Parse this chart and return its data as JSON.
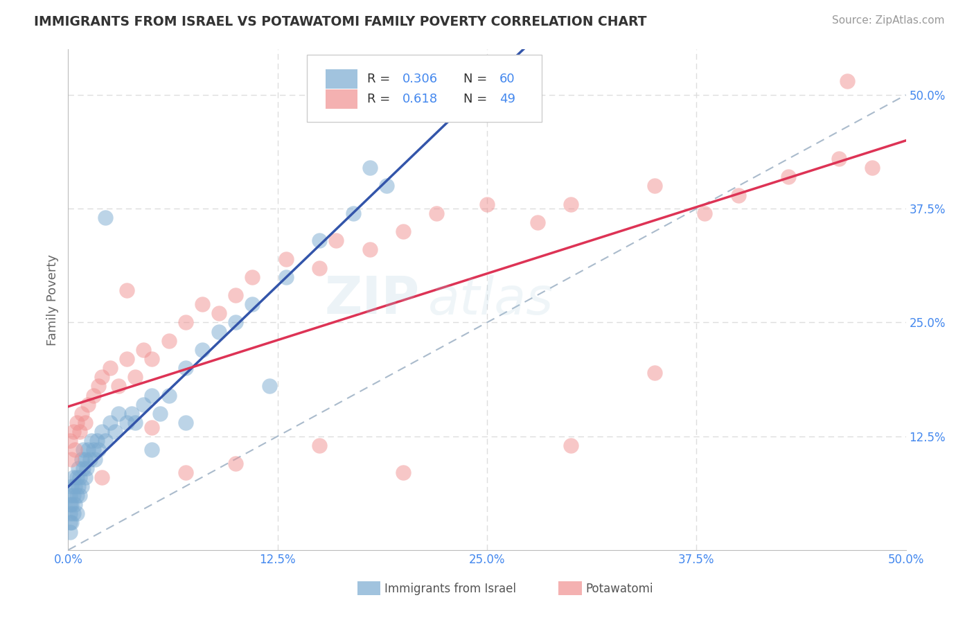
{
  "title": "IMMIGRANTS FROM ISRAEL VS POTAWATOMI FAMILY POVERTY CORRELATION CHART",
  "source": "Source: ZipAtlas.com",
  "ylabel": "Family Poverty",
  "R1": 0.306,
  "N1": 60,
  "R2": 0.618,
  "N2": 49,
  "color_blue": "#7AAAD0",
  "color_pink": "#F09090",
  "color_blue_line": "#3355AA",
  "color_pink_line": "#DD3355",
  "color_dashed_line": "#AABBCC",
  "watermark_color": "#AACCEE",
  "background_color": "#FFFFFF",
  "grid_color": "#DDDDDD",
  "legend_label1": "Immigrants from Israel",
  "legend_label2": "Potawatomi",
  "blue_x": [
    0.001,
    0.001,
    0.001,
    0.001,
    0.001,
    0.002,
    0.002,
    0.002,
    0.003,
    0.003,
    0.003,
    0.004,
    0.004,
    0.005,
    0.005,
    0.005,
    0.006,
    0.006,
    0.007,
    0.007,
    0.008,
    0.008,
    0.009,
    0.009,
    0.01,
    0.01,
    0.011,
    0.012,
    0.013,
    0.014,
    0.015,
    0.016,
    0.017,
    0.018,
    0.02,
    0.022,
    0.025,
    0.028,
    0.03,
    0.035,
    0.038,
    0.04,
    0.045,
    0.05,
    0.055,
    0.06,
    0.07,
    0.08,
    0.09,
    0.1,
    0.11,
    0.13,
    0.15,
    0.17,
    0.19,
    0.022,
    0.18,
    0.05,
    0.07,
    0.12
  ],
  "blue_y": [
    0.02,
    0.03,
    0.04,
    0.05,
    0.06,
    0.03,
    0.05,
    0.07,
    0.04,
    0.06,
    0.08,
    0.05,
    0.07,
    0.04,
    0.06,
    0.08,
    0.07,
    0.09,
    0.06,
    0.08,
    0.07,
    0.1,
    0.09,
    0.11,
    0.08,
    0.1,
    0.09,
    0.11,
    0.1,
    0.12,
    0.11,
    0.1,
    0.12,
    0.11,
    0.13,
    0.12,
    0.14,
    0.13,
    0.15,
    0.14,
    0.15,
    0.14,
    0.16,
    0.17,
    0.15,
    0.17,
    0.2,
    0.22,
    0.24,
    0.25,
    0.27,
    0.3,
    0.34,
    0.37,
    0.4,
    0.365,
    0.42,
    0.11,
    0.14,
    0.18
  ],
  "pink_x": [
    0.001,
    0.002,
    0.003,
    0.004,
    0.005,
    0.007,
    0.008,
    0.01,
    0.012,
    0.015,
    0.018,
    0.02,
    0.025,
    0.03,
    0.035,
    0.04,
    0.045,
    0.05,
    0.06,
    0.07,
    0.08,
    0.09,
    0.1,
    0.11,
    0.13,
    0.15,
    0.16,
    0.18,
    0.2,
    0.22,
    0.25,
    0.28,
    0.3,
    0.35,
    0.38,
    0.4,
    0.43,
    0.46,
    0.48,
    0.35,
    0.02,
    0.035,
    0.05,
    0.07,
    0.1,
    0.15,
    0.2,
    0.3,
    0.465
  ],
  "pink_y": [
    0.12,
    0.1,
    0.13,
    0.11,
    0.14,
    0.13,
    0.15,
    0.14,
    0.16,
    0.17,
    0.18,
    0.19,
    0.2,
    0.18,
    0.21,
    0.19,
    0.22,
    0.21,
    0.23,
    0.25,
    0.27,
    0.26,
    0.28,
    0.3,
    0.32,
    0.31,
    0.34,
    0.33,
    0.35,
    0.37,
    0.38,
    0.36,
    0.38,
    0.4,
    0.37,
    0.39,
    0.41,
    0.43,
    0.42,
    0.195,
    0.08,
    0.285,
    0.135,
    0.085,
    0.095,
    0.115,
    0.085,
    0.115,
    0.515
  ]
}
